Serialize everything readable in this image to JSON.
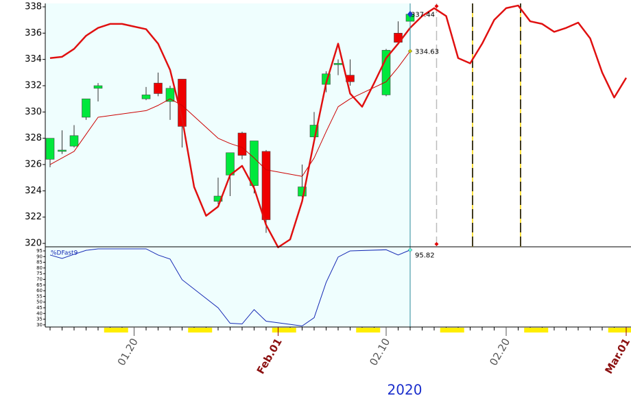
{
  "chart_data": [
    {
      "type": "candlestick",
      "x": [
        13,
        14,
        15,
        16,
        17,
        21,
        22,
        23,
        24,
        27,
        28,
        29,
        30,
        31,
        34,
        35,
        36,
        37,
        38,
        41,
        42,
        43
      ],
      "open": [
        326.4,
        327,
        327.4,
        329.6,
        331.8,
        331,
        332.2,
        330.8,
        332.5,
        323.2,
        325.2,
        328.4,
        324.4,
        327,
        323.6,
        328.1,
        332.1,
        333.6,
        332.8,
        331.3,
        336,
        336.9
      ],
      "high": [
        328,
        328.6,
        329,
        331,
        332.2,
        331.9,
        333,
        332,
        332.5,
        325,
        326.9,
        328.5,
        327.8,
        327.1,
        326,
        330,
        333.1,
        334,
        334,
        334.8,
        336.9,
        338
      ],
      "low": [
        325.8,
        326.8,
        327.3,
        329.4,
        330.8,
        330.9,
        331.2,
        329.4,
        327.3,
        323,
        323.6,
        326.4,
        323.8,
        320.8,
        323.5,
        327.6,
        331.5,
        332.8,
        332,
        331.2,
        335.3,
        336.9
      ],
      "close": [
        328,
        327.1,
        328.2,
        331,
        332,
        331.3,
        331.4,
        331.8,
        328.9,
        323.6,
        326.9,
        326.7,
        327.8,
        321.8,
        324.3,
        329,
        332.9,
        333.7,
        332.3,
        334.7,
        335.3,
        337.44
      ],
      "up_color": "#00e83c",
      "down_color": "#ee0000",
      "overlays": [
        {
          "x": [
            13,
            14,
            15,
            16,
            17,
            21,
            22,
            23,
            24,
            27,
            28,
            29,
            30,
            31,
            34,
            35,
            36,
            37,
            38,
            41,
            42,
            43
          ],
          "values": [
            326,
            326.5,
            327,
            328.3,
            329.6,
            330.1,
            330.5,
            331,
            330.5,
            328,
            327.6,
            327.3,
            326.5,
            325.6,
            325.1,
            326.5,
            328.5,
            330.4,
            331,
            332.3,
            333.4,
            334.63
          ],
          "color": "#cc0000",
          "width": 1
        },
        {
          "x": [
            13,
            14,
            15,
            16,
            17,
            18,
            19,
            20,
            21,
            22,
            23,
            24,
            25,
            26,
            27,
            28,
            29,
            30,
            31,
            32,
            33,
            34,
            35,
            36,
            37,
            38,
            39,
            40,
            41,
            42,
            43,
            44,
            45,
            46,
            47,
            48,
            49,
            50,
            51,
            52,
            53,
            54,
            55,
            56,
            57,
            58,
            59,
            60,
            61
          ],
          "values": [
            334.1,
            334.2,
            334.8,
            335.8,
            336.4,
            336.7,
            336.7,
            336.5,
            336.3,
            335.2,
            333.2,
            329.5,
            324.3,
            322.1,
            322.8,
            325.2,
            325.9,
            324.2,
            321.4,
            319.7,
            320.3,
            323.2,
            327.8,
            332.2,
            335.2,
            331.4,
            330.4,
            332.2,
            334.1,
            335.2,
            336.4,
            337.3,
            337.9,
            337.3,
            334.1,
            333.7,
            335.2,
            337,
            337.9,
            338.1,
            336.9,
            336.7,
            336.1,
            336.4,
            336.8,
            335.6,
            333,
            331.1,
            332.6
          ],
          "color": "#e01010",
          "width": 2.5
        }
      ],
      "vlines": [
        {
          "x": 45.2,
          "color": "#bbbbbb"
        },
        {
          "x": 48.2,
          "color": "#000000"
        },
        {
          "x": 52.2,
          "color": "#000000"
        }
      ],
      "cursor_x": 43,
      "xlim": [
        12.6,
        61.4
      ],
      "ylim": [
        319.74,
        338.26
      ],
      "yticks": [
        320,
        322,
        324,
        326,
        328,
        330,
        332,
        334,
        336,
        338
      ],
      "xticks": [
        {
          "value": 20,
          "label": "01.20"
        },
        {
          "value": 32,
          "label": "Feb.01"
        },
        {
          "value": 41,
          "label": "02.10"
        },
        {
          "value": 51,
          "label": "02.20"
        },
        {
          "value": 61,
          "label": "Mar.01"
        }
      ],
      "xtick_styles": [
        "day",
        "month",
        "day",
        "day",
        "month"
      ],
      "xlabel": "2020"
    },
    {
      "type": "line",
      "x": [
        13,
        14,
        15,
        16,
        17,
        21,
        22,
        23,
        24,
        27,
        28,
        29,
        30,
        31,
        34,
        35,
        36,
        37,
        38,
        41,
        42,
        43
      ],
      "series": [
        {
          "name": "%DFast9",
          "color": "#1428b4",
          "values": [
            91.4,
            88.4,
            92,
            95.5,
            96.8,
            96.8,
            91.4,
            87.8,
            69.7,
            45,
            31.4,
            30.8,
            43.4,
            33.2,
            29,
            36.3,
            67.3,
            89.6,
            95,
            96,
            91.4,
            95.82
          ]
        }
      ],
      "xlim": [
        12.6,
        61.4
      ],
      "ylim": [
        28.1,
        98.6
      ],
      "yticks": [
        30,
        35,
        40,
        45,
        50,
        55,
        60,
        65,
        70,
        75,
        80,
        85,
        90,
        95
      ]
    }
  ]
}
